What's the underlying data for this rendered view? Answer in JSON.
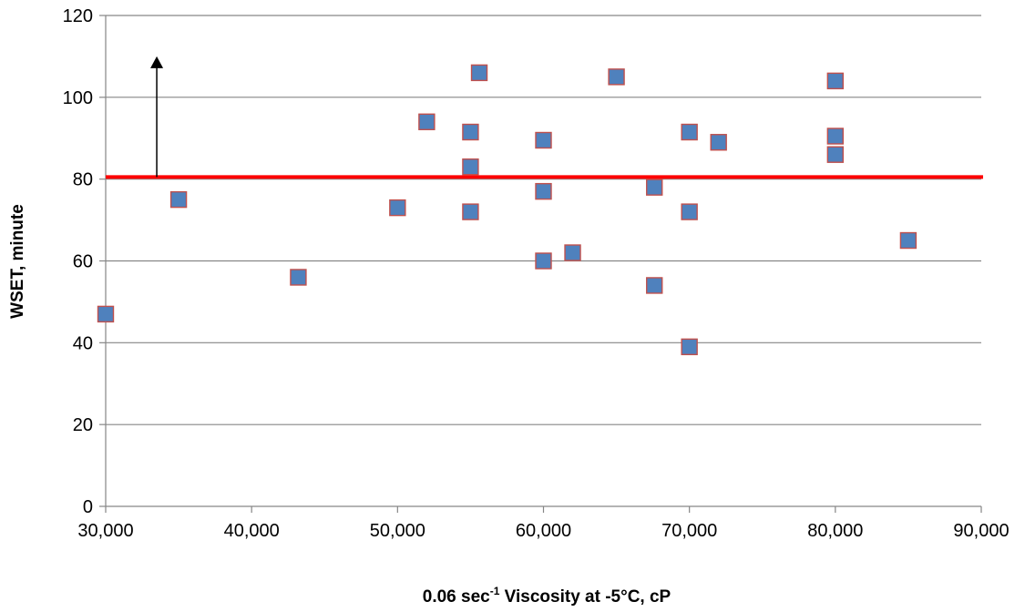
{
  "chart_data": {
    "type": "scatter",
    "title": "",
    "xlabel": {
      "main": "0.06 sec",
      "superscript": "-1",
      "rest": " Viscosity at -5°C, cP"
    },
    "ylabel": "WSET, minute",
    "xlim": [
      30000,
      90000
    ],
    "ylim": [
      0,
      120
    ],
    "x_ticks": [
      30000,
      40000,
      50000,
      60000,
      70000,
      80000,
      90000
    ],
    "x_tick_labels": [
      "30,000",
      "40,000",
      "50,000",
      "60,000",
      "70,000",
      "80,000",
      "90,000"
    ],
    "y_ticks": [
      0,
      20,
      40,
      60,
      80,
      100,
      120
    ],
    "y_tick_labels": [
      "0",
      "20",
      "40",
      "60",
      "80",
      "100",
      "120"
    ],
    "grid": "horizontal",
    "legend": "none",
    "marker": "square",
    "marker_fill": "#4F81BD",
    "marker_edge": "#C0504D",
    "threshold_line": {
      "y": 80.5,
      "color": "#FF0000"
    },
    "arrow": {
      "x": 33500,
      "y_from": 80.5,
      "y_to": 110,
      "direction": "up",
      "color": "#000000"
    },
    "points": [
      {
        "x": 30000,
        "y": 47
      },
      {
        "x": 35000,
        "y": 75
      },
      {
        "x": 43200,
        "y": 56
      },
      {
        "x": 50000,
        "y": 73
      },
      {
        "x": 52000,
        "y": 94
      },
      {
        "x": 55000,
        "y": 91.5
      },
      {
        "x": 55000,
        "y": 83
      },
      {
        "x": 55000,
        "y": 72
      },
      {
        "x": 55600,
        "y": 106
      },
      {
        "x": 60000,
        "y": 89.5
      },
      {
        "x": 60000,
        "y": 77
      },
      {
        "x": 60000,
        "y": 60
      },
      {
        "x": 62000,
        "y": 62
      },
      {
        "x": 65000,
        "y": 105
      },
      {
        "x": 67600,
        "y": 78
      },
      {
        "x": 67600,
        "y": 54
      },
      {
        "x": 70000,
        "y": 91.5
      },
      {
        "x": 70000,
        "y": 72
      },
      {
        "x": 70000,
        "y": 39
      },
      {
        "x": 72000,
        "y": 89
      },
      {
        "x": 80000,
        "y": 104
      },
      {
        "x": 80000,
        "y": 90.5
      },
      {
        "x": 80000,
        "y": 86
      },
      {
        "x": 85000,
        "y": 65
      }
    ]
  }
}
